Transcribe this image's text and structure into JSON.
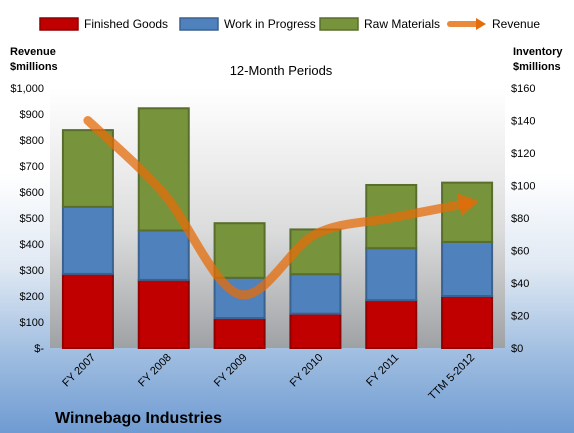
{
  "chart_data": {
    "type": "bar",
    "stacked": true,
    "subtitle": "12-Month Periods",
    "company": "Winnebago Industries",
    "y_left_title": [
      "Revenue",
      "$millions"
    ],
    "y_right_title": [
      "Inventory",
      "$millions"
    ],
    "categories": [
      "FY 2007",
      "FY 2008",
      "FY 2009",
      "FY 2010",
      "FY 2011",
      "TTM 5-2012"
    ],
    "series": [
      {
        "name": "Finished Goods",
        "axis": "left",
        "color": "#c00000",
        "values": [
          285,
          262,
          115,
          132,
          184,
          200
        ]
      },
      {
        "name": "Work in Progress",
        "axis": "left",
        "color": "#4f81bd",
        "values": [
          258,
          190,
          155,
          152,
          200,
          208
        ]
      },
      {
        "name": "Raw Materials",
        "axis": "left",
        "color": "#77933c",
        "values": [
          295,
          470,
          210,
          172,
          243,
          228
        ]
      },
      {
        "name": "Revenue",
        "axis": "right",
        "type": "line",
        "color": "#e46c0a",
        "values": [
          140,
          95,
          33,
          70,
          80,
          89
        ]
      }
    ],
    "ylim_left": [
      0,
      1000
    ],
    "ylim_right": [
      0,
      160
    ],
    "yticks_left": [
      "$-",
      "$100",
      "$200",
      "$300",
      "$400",
      "$500",
      "$600",
      "$700",
      "$800",
      "$900",
      "$1,000"
    ],
    "yticks_right": [
      "$0",
      "$20",
      "$40",
      "$60",
      "$80",
      "$100",
      "$120",
      "$140",
      "$160"
    ],
    "legend_position": "top",
    "grid": false
  }
}
